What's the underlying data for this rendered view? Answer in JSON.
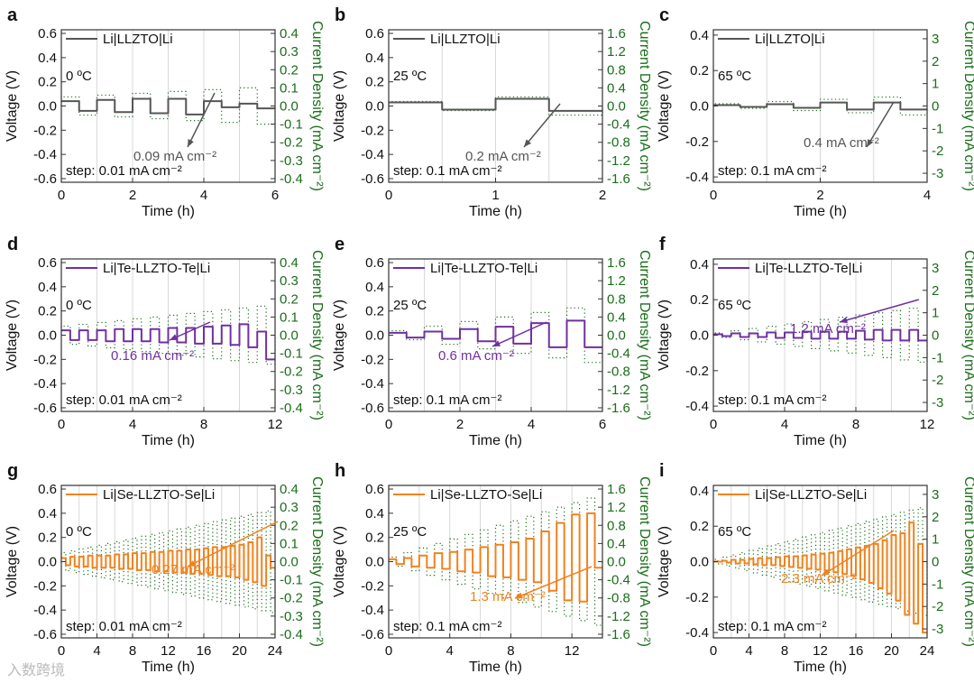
{
  "watermark": "入数跨境",
  "colors": {
    "current": "#1a6e1a",
    "gray": "#555555",
    "purple": "#7030a0",
    "orange": "#f0821e",
    "grid": "#d8d8d8"
  },
  "chart_data": [
    {
      "panel": "a",
      "type": "line",
      "legend": "Li|LLZTO|Li",
      "color_key": "gray",
      "temperature": "0 ºC",
      "step_text": "step: 0.01 mA cm⁻²",
      "annotation": "0.09 mA cm⁻²",
      "xlabel": "Time (h)",
      "ylabel": "Voltage (V)",
      "y2label": "Current Density (mA cm⁻²)",
      "xlim": [
        0,
        6
      ],
      "xticks": [
        0,
        2,
        4,
        6
      ],
      "ylim": [
        -0.63,
        0.63
      ],
      "yticks": [
        -0.6,
        -0.4,
        -0.2,
        0.0,
        0.2,
        0.4,
        0.6
      ],
      "y2lim": [
        -0.42,
        0.42
      ],
      "y2ticks": [
        -0.4,
        -0.3,
        -0.2,
        -0.1,
        0.0,
        0.1,
        0.2,
        0.3,
        0.4
      ],
      "period_h": 1,
      "current": [
        0.05,
        0.06,
        0.07,
        0.08,
        0.09,
        0.1
      ],
      "voltage_pos": [
        0.04,
        0.05,
        0.06,
        0.06,
        0.04,
        0.02
      ],
      "voltage_neg": [
        -0.04,
        -0.05,
        -0.06,
        -0.07,
        -0.01,
        -0.02
      ]
    },
    {
      "panel": "b",
      "type": "line",
      "legend": "Li|LLZTO|Li",
      "color_key": "gray",
      "temperature": "25 ºC",
      "step_text": "step: 0.1 mA cm⁻²",
      "annotation": "0.2 mA cm⁻²",
      "xlabel": "Time (h)",
      "ylabel": "Voltage (V)",
      "y2label": "Current Density (mA cm⁻²)",
      "xlim": [
        0,
        2
      ],
      "xticks": [
        0,
        1,
        2
      ],
      "ylim": [
        -0.63,
        0.63
      ],
      "yticks": [
        -0.6,
        -0.4,
        -0.2,
        0.0,
        0.2,
        0.4,
        0.6
      ],
      "y2lim": [
        -1.68,
        1.68
      ],
      "y2ticks": [
        -1.6,
        -1.2,
        -0.8,
        -0.4,
        0.0,
        0.4,
        0.8,
        1.2,
        1.6
      ],
      "period_h": 1,
      "current": [
        0.1,
        0.2
      ],
      "voltage_pos": [
        0.03,
        0.06
      ],
      "voltage_neg": [
        -0.03,
        -0.04
      ]
    },
    {
      "panel": "c",
      "type": "line",
      "legend": "Li|LLZTO|Li",
      "color_key": "gray",
      "temperature": "65 ºC",
      "step_text": "step: 0.1 mA cm⁻²",
      "annotation": "0.4 mA cm⁻²",
      "xlabel": "Time (h)",
      "ylabel": "Voltage (V)",
      "y2label": "Current Density (mA cm⁻²)",
      "xlim": [
        0,
        4
      ],
      "xticks": [
        0,
        2,
        4
      ],
      "ylim": [
        -0.43,
        0.43
      ],
      "yticks": [
        -0.4,
        -0.2,
        0.0,
        0.2,
        0.4
      ],
      "y2lim": [
        -3.4,
        3.4
      ],
      "y2ticks": [
        -3,
        -2,
        -1,
        0,
        1,
        2,
        3
      ],
      "period_h": 1,
      "current": [
        0.1,
        0.2,
        0.3,
        0.4
      ],
      "voltage_pos": [
        0.005,
        0.01,
        0.02,
        0.02
      ],
      "voltage_neg": [
        -0.005,
        -0.01,
        -0.02,
        -0.02
      ]
    },
    {
      "panel": "d",
      "type": "line",
      "legend": "Li|Te-LLZTO-Te|Li",
      "color_key": "purple",
      "temperature": "0 ºC",
      "step_text": "step: 0.01 mA cm⁻²",
      "annotation": "0.16 mA cm⁻²",
      "xlabel": "Time (h)",
      "ylabel": "Voltage (V)",
      "y2label": "Current Density (mA cm⁻²)",
      "xlim": [
        0,
        12
      ],
      "xticks": [
        0,
        4,
        8,
        12
      ],
      "ylim": [
        -0.63,
        0.63
      ],
      "yticks": [
        -0.6,
        -0.4,
        -0.2,
        0.0,
        0.2,
        0.4,
        0.6
      ],
      "y2lim": [
        -0.42,
        0.42
      ],
      "y2ticks": [
        -0.4,
        -0.3,
        -0.2,
        -0.1,
        0.0,
        0.1,
        0.2,
        0.3,
        0.4
      ],
      "period_h": 1,
      "current": [
        0.05,
        0.06,
        0.07,
        0.08,
        0.09,
        0.1,
        0.11,
        0.12,
        0.13,
        0.14,
        0.15,
        0.16
      ],
      "voltage_pos": [
        0.04,
        0.04,
        0.04,
        0.05,
        0.05,
        0.05,
        0.06,
        0.06,
        0.07,
        0.08,
        0.09,
        0.03
      ],
      "voltage_neg": [
        -0.04,
        -0.04,
        -0.05,
        -0.05,
        -0.05,
        -0.06,
        -0.06,
        -0.07,
        -0.07,
        -0.08,
        -0.1,
        -0.2
      ]
    },
    {
      "panel": "e",
      "type": "line",
      "legend": "Li|Te-LLZTO-Te|Li",
      "color_key": "purple",
      "temperature": "25 ºC",
      "step_text": "step: 0.1 mA cm⁻²",
      "annotation": "0.6 mA cm⁻²",
      "xlabel": "Time (h)",
      "ylabel": "Voltage (V)",
      "y2label": "Current Density (mA cm⁻²)",
      "xlim": [
        0,
        6
      ],
      "xticks": [
        0,
        2,
        4,
        6
      ],
      "ylim": [
        -0.63,
        0.63
      ],
      "yticks": [
        -0.6,
        -0.4,
        -0.2,
        0.0,
        0.2,
        0.4,
        0.6
      ],
      "y2lim": [
        -1.68,
        1.68
      ],
      "y2ticks": [
        -1.6,
        -1.2,
        -0.8,
        -0.4,
        0.0,
        0.4,
        0.8,
        1.2,
        1.6
      ],
      "period_h": 1,
      "current": [
        0.1,
        0.2,
        0.3,
        0.4,
        0.5,
        0.6
      ],
      "voltage_pos": [
        0.02,
        0.03,
        0.05,
        0.07,
        0.1,
        0.12
      ],
      "voltage_neg": [
        -0.02,
        -0.03,
        -0.05,
        -0.07,
        -0.1,
        -0.1
      ]
    },
    {
      "panel": "f",
      "type": "line",
      "legend": "Li|Te-LLZTO-Te|Li",
      "color_key": "purple",
      "temperature": "65 ºC",
      "step_text": "step: 0.1 mA cm⁻²",
      "annotation": "1.2 mA cm⁻²",
      "xlabel": "Time (h)",
      "ylabel": "Voltage (V)",
      "y2label": "Current Density (mA cm⁻²)",
      "xlim": [
        0,
        12
      ],
      "xticks": [
        0,
        4,
        8,
        12
      ],
      "ylim": [
        -0.43,
        0.43
      ],
      "yticks": [
        -0.4,
        -0.2,
        0.0,
        0.2,
        0.4
      ],
      "y2lim": [
        -3.4,
        3.4
      ],
      "y2ticks": [
        -3,
        -2,
        -1,
        0,
        1,
        2,
        3
      ],
      "period_h": 1,
      "current": [
        0.1,
        0.2,
        0.3,
        0.4,
        0.5,
        0.6,
        0.7,
        0.8,
        0.9,
        1.0,
        1.1,
        1.2
      ],
      "voltage_pos": [
        0.005,
        0.01,
        0.01,
        0.015,
        0.015,
        0.02,
        0.02,
        0.02,
        0.025,
        0.03,
        0.03,
        0.03
      ],
      "voltage_neg": [
        -0.005,
        -0.01,
        -0.01,
        -0.015,
        -0.015,
        -0.02,
        -0.02,
        -0.02,
        -0.025,
        -0.03,
        -0.03,
        -0.03
      ]
    },
    {
      "panel": "g",
      "type": "line",
      "legend": "Li|Se-LLZTO-Se|Li",
      "color_key": "orange",
      "temperature": "0 ºC",
      "step_text": "step: 0.01 mA cm⁻²",
      "annotation": "0.27 mA cm⁻²",
      "xlabel": "Time (h)",
      "ylabel": "Voltage (V)",
      "y2label": "Current Density (mA cm⁻²)",
      "xlim": [
        0,
        24
      ],
      "xticks": [
        0,
        4,
        8,
        12,
        16,
        20,
        24
      ],
      "ylim": [
        -0.63,
        0.63
      ],
      "yticks": [
        -0.6,
        -0.4,
        -0.2,
        0.0,
        0.2,
        0.4,
        0.6
      ],
      "y2lim": [
        -0.42,
        0.42
      ],
      "y2ticks": [
        -0.4,
        -0.3,
        -0.2,
        -0.1,
        0.0,
        0.1,
        0.2,
        0.3,
        0.4
      ],
      "period_h": 1,
      "current": [
        0.05,
        0.06,
        0.07,
        0.08,
        0.09,
        0.1,
        0.11,
        0.12,
        0.13,
        0.14,
        0.15,
        0.16,
        0.17,
        0.18,
        0.19,
        0.2,
        0.21,
        0.22,
        0.23,
        0.24,
        0.25,
        0.26,
        0.27,
        0.28
      ],
      "voltage_pos": [
        0.03,
        0.04,
        0.04,
        0.05,
        0.05,
        0.05,
        0.06,
        0.06,
        0.07,
        0.07,
        0.08,
        0.08,
        0.09,
        0.09,
        0.1,
        0.1,
        0.11,
        0.12,
        0.12,
        0.13,
        0.14,
        0.16,
        0.2,
        0.05
      ],
      "voltage_neg": [
        -0.03,
        -0.04,
        -0.04,
        -0.05,
        -0.05,
        -0.05,
        -0.06,
        -0.06,
        -0.07,
        -0.07,
        -0.08,
        -0.08,
        -0.09,
        -0.09,
        -0.1,
        -0.1,
        -0.11,
        -0.12,
        -0.12,
        -0.13,
        -0.15,
        -0.17,
        -0.2,
        -0.05
      ]
    },
    {
      "panel": "h",
      "type": "line",
      "legend": "Li|Se-LLZTO-Se|Li",
      "color_key": "orange",
      "temperature": "25 ºC",
      "step_text": "step: 0.1 mA cm⁻²",
      "annotation": "1.3 mA cm⁻²",
      "xlabel": "Time (h)",
      "ylabel": "Voltage (V)",
      "y2label": "Current Density (mA cm⁻²)",
      "xlim": [
        0,
        14
      ],
      "xticks": [
        0,
        4,
        8,
        12
      ],
      "ylim": [
        -0.63,
        0.63
      ],
      "yticks": [
        -0.6,
        -0.4,
        -0.2,
        0.0,
        0.2,
        0.4,
        0.6
      ],
      "y2lim": [
        -1.68,
        1.68
      ],
      "y2ticks": [
        -1.6,
        -1.2,
        -0.8,
        -0.4,
        0.0,
        0.4,
        0.8,
        1.2,
        1.6
      ],
      "period_h": 1,
      "current": [
        0.1,
        0.2,
        0.3,
        0.4,
        0.5,
        0.6,
        0.7,
        0.8,
        0.9,
        1.0,
        1.1,
        1.2,
        1.3,
        1.4
      ],
      "voltage_pos": [
        0.02,
        0.03,
        0.05,
        0.07,
        0.08,
        0.1,
        0.12,
        0.14,
        0.16,
        0.19,
        0.25,
        0.32,
        0.39,
        0.4
      ],
      "voltage_neg": [
        -0.02,
        -0.04,
        -0.05,
        -0.06,
        -0.08,
        -0.09,
        -0.12,
        -0.13,
        -0.15,
        -0.17,
        -0.24,
        -0.32,
        -0.33,
        -0.05
      ]
    },
    {
      "panel": "i",
      "type": "line",
      "legend": "Li|Se-LLZTO-Se|Li",
      "color_key": "orange",
      "temperature": "65 ºC",
      "step_text": "step: 0.1 mA cm⁻²",
      "annotation": "2.3 mA cm⁻²",
      "xlabel": "Time (h)",
      "ylabel": "Voltage (V)",
      "y2label": "Current Density (mA cm⁻²)",
      "xlim": [
        0,
        24
      ],
      "xticks": [
        0,
        4,
        8,
        12,
        16,
        20,
        24
      ],
      "ylim": [
        -0.43,
        0.43
      ],
      "yticks": [
        -0.4,
        -0.2,
        0.0,
        0.2,
        0.4
      ],
      "y2lim": [
        -3.4,
        3.4
      ],
      "y2ticks": [
        -3,
        -2,
        -1,
        0,
        1,
        2,
        3
      ],
      "period_h": 1,
      "current": [
        0.1,
        0.2,
        0.3,
        0.4,
        0.5,
        0.6,
        0.7,
        0.8,
        0.9,
        1.0,
        1.1,
        1.2,
        1.3,
        1.4,
        1.5,
        1.6,
        1.7,
        1.8,
        1.9,
        2.0,
        2.1,
        2.2,
        2.3,
        2.4
      ],
      "voltage_pos": [
        0.0,
        0.005,
        0.01,
        0.01,
        0.015,
        0.02,
        0.02,
        0.025,
        0.03,
        0.03,
        0.035,
        0.04,
        0.045,
        0.05,
        0.06,
        0.07,
        0.08,
        0.09,
        0.1,
        0.12,
        0.15,
        0.16,
        0.22,
        0.1
      ],
      "voltage_neg": [
        0.0,
        -0.005,
        -0.01,
        -0.01,
        -0.015,
        -0.02,
        -0.02,
        -0.025,
        -0.03,
        -0.035,
        -0.04,
        -0.045,
        -0.05,
        -0.06,
        -0.07,
        -0.08,
        -0.1,
        -0.12,
        -0.15,
        -0.18,
        -0.22,
        -0.3,
        -0.35,
        -0.4
      ]
    }
  ]
}
